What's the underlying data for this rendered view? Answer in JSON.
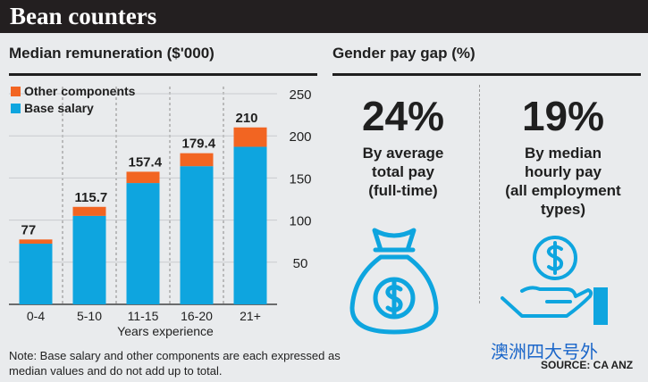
{
  "header": {
    "title": "Bean counters"
  },
  "left": {
    "heading": "Median remuneration ($'000)"
  },
  "right": {
    "heading": "Gender pay gap (%)"
  },
  "chart_data": {
    "type": "bar",
    "stacked": true,
    "title": "Median remuneration ($'000)",
    "categories": [
      "0-4",
      "5-10",
      "11-15",
      "16-20",
      "21+"
    ],
    "series": [
      {
        "name": "Base salary",
        "values": [
          72,
          105,
          144,
          164,
          187
        ],
        "color": "#0ea5df"
      },
      {
        "name": "Other components",
        "values": [
          5,
          10.7,
          13.4,
          15.4,
          23
        ],
        "color": "#f26522"
      }
    ],
    "totals": [
      77,
      115.7,
      157.4,
      179.4,
      210
    ],
    "total_labels": [
      "77",
      "115.7",
      "157.4",
      "179.4",
      "210"
    ],
    "xlabel": "Years experience",
    "ylabel": "",
    "ylim": [
      0,
      250
    ],
    "yticks": [
      "50",
      "100",
      "150",
      "200",
      "250"
    ],
    "legend": [
      "Other components",
      "Base salary"
    ],
    "legend_position": "top-left",
    "grid": "vertical dashed"
  },
  "stats": [
    {
      "value": "24%",
      "caption": [
        "By average",
        "total pay",
        "(full-time)"
      ],
      "icon": "money-bag-icon"
    },
    {
      "value": "19%",
      "caption": [
        "By median",
        "hourly pay",
        "(all employment",
        "types)"
      ],
      "icon": "coin-in-hand-icon"
    }
  ],
  "note": "Note: Base salary and other components are each expressed as median values and do not add up to total.",
  "watermark": "澳洲四大号外",
  "source": "SOURCE: CA ANZ",
  "colors": {
    "base": "#0ea5df",
    "other": "#f26522",
    "header_bg": "#231f20",
    "background": "#e9ebed",
    "icon": "#0ea5df"
  }
}
